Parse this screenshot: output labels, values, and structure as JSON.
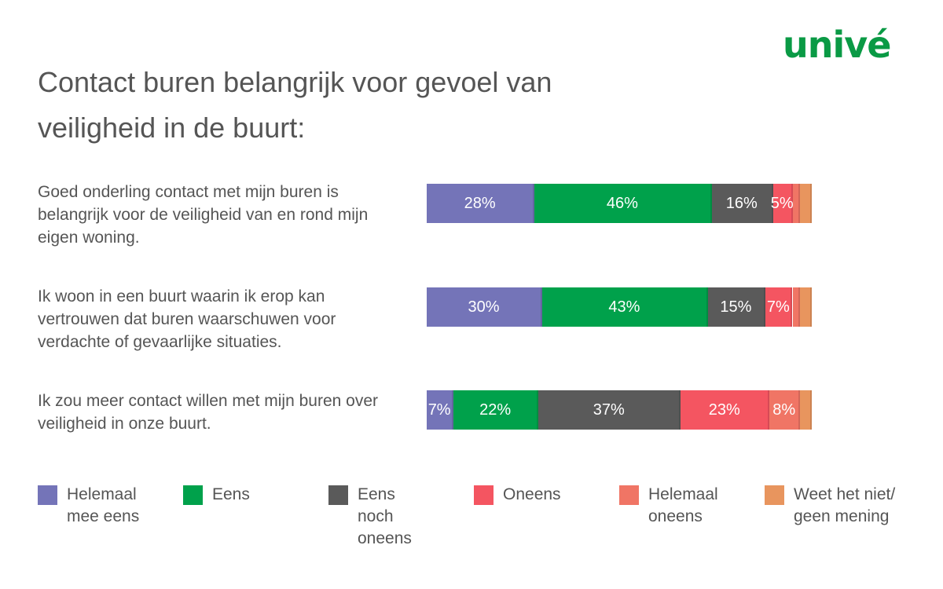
{
  "logo": "univé",
  "chart_data": {
    "type": "bar",
    "orientation": "horizontal",
    "stacked": true,
    "title": "Contact buren belangrijk voor gevoel van veiligheid in de buurt:",
    "categories": [
      "Goed onderling contact met mijn buren is belangrijk voor de veiligheid van en rond mijn eigen woning.",
      "Ik woon in een buurt waarin ik erop kan vertrouwen dat buren waarschuwen voor verdachte of gevaarlijke situaties.",
      "Ik zou meer contact willen met mijn buren over veiligheid in onze buurt."
    ],
    "series": [
      {
        "name": "Helemaal mee eens",
        "color": "#7474b8",
        "values": [
          28,
          30,
          7
        ],
        "value_labels": [
          "28%",
          "30%",
          "7%"
        ]
      },
      {
        "name": "Eens",
        "color": "#00a14b",
        "values": [
          46,
          43,
          22
        ],
        "value_labels": [
          "46%",
          "43%",
          "22%"
        ]
      },
      {
        "name": "Eens noch oneens",
        "color": "#5a5a5a",
        "values": [
          16,
          15,
          37
        ],
        "value_labels": [
          "16%",
          "15%",
          "37%"
        ]
      },
      {
        "name": "Oneens",
        "color": "#f45561",
        "values": [
          5,
          7,
          23
        ],
        "value_labels": [
          "5%",
          "7%",
          "23%"
        ]
      },
      {
        "name": "Helemaal oneens",
        "color": "#f07565",
        "values": [
          2,
          2,
          8
        ],
        "value_labels": [
          null,
          null,
          "8%"
        ]
      },
      {
        "name": "Weet het niet/ geen mening",
        "color": "#e8955e",
        "values": [
          3,
          3,
          3
        ]
      }
    ]
  }
}
